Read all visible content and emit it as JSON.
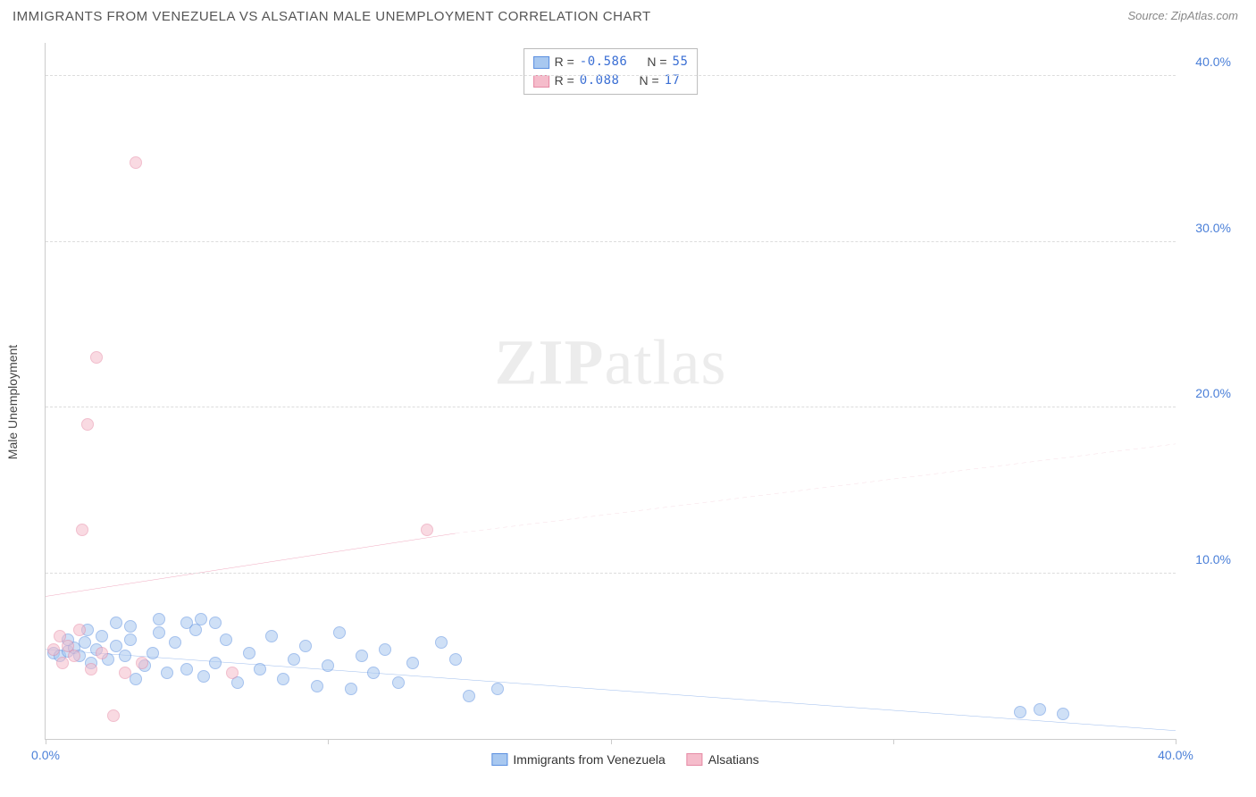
{
  "title": "IMMIGRANTS FROM VENEZUELA VS ALSATIAN MALE UNEMPLOYMENT CORRELATION CHART",
  "source": "Source: ZipAtlas.com",
  "y_axis_label": "Male Unemployment",
  "watermark": "ZIPatlas",
  "chart": {
    "type": "scatter",
    "xlim": [
      0,
      40
    ],
    "ylim": [
      0,
      42
    ],
    "x_ticks": [
      0,
      10,
      20,
      30,
      40
    ],
    "y_ticks": [
      10,
      20,
      30,
      40
    ],
    "x_tick_labels": [
      "0.0%",
      "",
      "",
      "",
      "40.0%"
    ],
    "y_tick_labels": [
      "10.0%",
      "20.0%",
      "30.0%",
      "40.0%"
    ],
    "grid_color": "#dddddd",
    "axis_color": "#cccccc",
    "tick_label_color": "#4a7fd8",
    "background_color": "#ffffff"
  },
  "series": [
    {
      "name": "Immigrants from Venezuela",
      "color_fill": "#a8c8f0",
      "color_stroke": "#5b8fe0",
      "r_label": "R =",
      "r_value": "-0.586",
      "n_label": "N =",
      "n_value": "55",
      "trend": {
        "x1": 0,
        "y1": 5.4,
        "x2": 40,
        "y2": 0.5,
        "color": "#2d6fd6",
        "width": 2,
        "dash": "none"
      },
      "trend_ext": null,
      "points": [
        [
          0.3,
          5.2
        ],
        [
          0.5,
          5.0
        ],
        [
          0.8,
          5.3
        ],
        [
          1.0,
          5.5
        ],
        [
          1.2,
          5.0
        ],
        [
          1.4,
          5.8
        ],
        [
          1.6,
          4.6
        ],
        [
          1.8,
          5.4
        ],
        [
          2.0,
          6.2
        ],
        [
          2.2,
          4.8
        ],
        [
          2.5,
          5.6
        ],
        [
          2.8,
          5.0
        ],
        [
          3.0,
          6.0
        ],
        [
          3.2,
          3.6
        ],
        [
          3.5,
          4.4
        ],
        [
          3.8,
          5.2
        ],
        [
          4.0,
          6.4
        ],
        [
          4.3,
          4.0
        ],
        [
          4.6,
          5.8
        ],
        [
          5.0,
          4.2
        ],
        [
          5.3,
          6.6
        ],
        [
          5.6,
          3.8
        ],
        [
          6.0,
          4.6
        ],
        [
          6.4,
          6.0
        ],
        [
          6.8,
          3.4
        ],
        [
          7.2,
          5.2
        ],
        [
          7.6,
          4.2
        ],
        [
          8.0,
          6.2
        ],
        [
          8.4,
          3.6
        ],
        [
          8.8,
          4.8
        ],
        [
          9.2,
          5.6
        ],
        [
          9.6,
          3.2
        ],
        [
          10.0,
          4.4
        ],
        [
          10.4,
          6.4
        ],
        [
          10.8,
          3.0
        ],
        [
          11.2,
          5.0
        ],
        [
          11.6,
          4.0
        ],
        [
          12.0,
          5.4
        ],
        [
          12.5,
          3.4
        ],
        [
          13.0,
          4.6
        ],
        [
          14.0,
          5.8
        ],
        [
          14.5,
          4.8
        ],
        [
          15.0,
          2.6
        ],
        [
          16.0,
          3.0
        ],
        [
          34.5,
          1.6
        ],
        [
          35.2,
          1.8
        ],
        [
          36.0,
          1.5
        ],
        [
          5.0,
          7.0
        ],
        [
          5.5,
          7.2
        ],
        [
          6.0,
          7.0
        ],
        [
          4.0,
          7.2
        ],
        [
          3.0,
          6.8
        ],
        [
          2.5,
          7.0
        ],
        [
          1.5,
          6.6
        ],
        [
          0.8,
          6.0
        ]
      ]
    },
    {
      "name": "Alsatians",
      "color_fill": "#f5bccb",
      "color_stroke": "#e68aa5",
      "r_label": "R =",
      "r_value": " 0.088",
      "n_label": "N =",
      "n_value": "17",
      "trend": {
        "x1": 0,
        "y1": 8.6,
        "x2": 14.5,
        "y2": 12.4,
        "color": "#e04b7a",
        "width": 2,
        "dash": "none"
      },
      "trend_ext": {
        "x1": 14.5,
        "y1": 12.4,
        "x2": 40,
        "y2": 17.8,
        "color": "#e8a0b5",
        "width": 1.5,
        "dash": "5,4"
      },
      "points": [
        [
          0.3,
          5.4
        ],
        [
          0.5,
          6.2
        ],
        [
          0.8,
          5.6
        ],
        [
          0.6,
          4.6
        ],
        [
          1.0,
          5.0
        ],
        [
          1.2,
          6.6
        ],
        [
          1.6,
          4.2
        ],
        [
          2.0,
          5.2
        ],
        [
          2.4,
          1.4
        ],
        [
          2.8,
          4.0
        ],
        [
          3.4,
          4.6
        ],
        [
          6.6,
          4.0
        ],
        [
          1.3,
          12.6
        ],
        [
          1.5,
          19.0
        ],
        [
          1.8,
          23.0
        ],
        [
          3.2,
          34.8
        ],
        [
          13.5,
          12.6
        ]
      ]
    }
  ],
  "legend_bottom": [
    {
      "label": "Immigrants from Venezuela",
      "swatch_fill": "#a8c8f0",
      "swatch_stroke": "#5b8fe0"
    },
    {
      "label": "Alsatians",
      "swatch_fill": "#f5bccb",
      "swatch_stroke": "#e68aa5"
    }
  ]
}
